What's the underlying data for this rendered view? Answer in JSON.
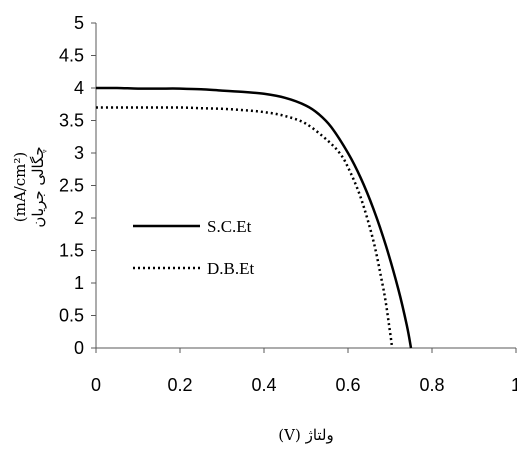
{
  "chart_data": {
    "type": "line",
    "xlabel": "ولتاژ (V)",
    "ylabel_unit": "(mA/cm²)",
    "ylabel_text": "چگالی جریان",
    "xlim": [
      0,
      1
    ],
    "ylim": [
      0,
      5
    ],
    "x_ticks": [
      "0",
      "0.2",
      "0.4",
      "0.6",
      "0.8",
      "1"
    ],
    "y_ticks": [
      "0",
      "0.5",
      "1",
      "1.5",
      "2",
      "2.5",
      "3",
      "3.5",
      "4",
      "4.5",
      "5"
    ],
    "grid": false,
    "legend_position": "left-center",
    "series": [
      {
        "name": "S.C.Et",
        "style": "solid",
        "color": "#000000",
        "x": [
          0,
          0.05,
          0.1,
          0.15,
          0.2,
          0.25,
          0.3,
          0.35,
          0.4,
          0.45,
          0.5,
          0.53,
          0.56,
          0.6,
          0.63,
          0.66,
          0.69,
          0.72,
          0.74,
          0.75
        ],
        "y": [
          4.0,
          4.0,
          3.99,
          3.99,
          3.99,
          3.98,
          3.96,
          3.94,
          3.91,
          3.85,
          3.73,
          3.6,
          3.4,
          3.0,
          2.62,
          2.15,
          1.58,
          0.9,
          0.35,
          0
        ]
      },
      {
        "name": "D.B.Et",
        "style": "dotted",
        "color": "#000000",
        "x": [
          0,
          0.05,
          0.1,
          0.15,
          0.2,
          0.25,
          0.3,
          0.35,
          0.4,
          0.45,
          0.5,
          0.55,
          0.58,
          0.6,
          0.63,
          0.66,
          0.68,
          0.69,
          0.7,
          0.705
        ],
        "y": [
          3.7,
          3.7,
          3.7,
          3.7,
          3.7,
          3.69,
          3.68,
          3.66,
          3.63,
          3.57,
          3.45,
          3.2,
          3.0,
          2.78,
          2.32,
          1.66,
          1.05,
          0.7,
          0.25,
          0
        ]
      }
    ]
  }
}
